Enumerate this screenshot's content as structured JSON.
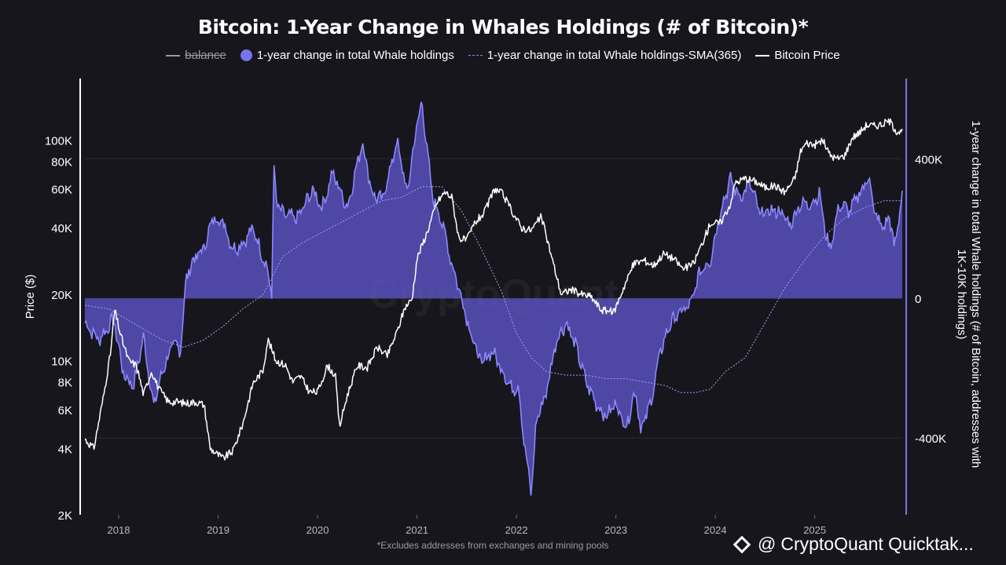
{
  "chart_data": {
    "type": "area",
    "title": "Bitcoin: 1-Year Change in Whales Holdings (# of Bitcoin)*",
    "footnote": "*Excludes addresses from exchanges and mining pools",
    "watermark": "CryptoQuant",
    "legend": [
      {
        "label": "balance",
        "style": "line",
        "color": "#9b9aa3",
        "hidden": true
      },
      {
        "label": "1-year change in total Whale holdings",
        "style": "area",
        "color": "#7a72f0"
      },
      {
        "label": "1-year change in total Whale holdings-SMA(365)",
        "style": "dashed",
        "color": "#8a84f2"
      },
      {
        "label": "Bitcoin Price",
        "style": "line",
        "color": "#ffffff"
      }
    ],
    "x_ticks": [
      "2018",
      "2019",
      "2020",
      "2021",
      "2022",
      "2023",
      "2024",
      "2025"
    ],
    "x_range": [
      2017.66,
      2025.88
    ],
    "left_axis": {
      "label": "Price ($)",
      "scale": "log",
      "range": [
        2000,
        190000
      ],
      "ticks": [
        {
          "value": 2000,
          "label": "2K"
        },
        {
          "value": 4000,
          "label": "4K"
        },
        {
          "value": 6000,
          "label": "6K"
        },
        {
          "value": 8000,
          "label": "8K"
        },
        {
          "value": 10000,
          "label": "10K"
        },
        {
          "value": 20000,
          "label": "20K"
        },
        {
          "value": 40000,
          "label": "40K"
        },
        {
          "value": 60000,
          "label": "60K"
        },
        {
          "value": 80000,
          "label": "80K"
        },
        {
          "value": 100000,
          "label": "100K"
        }
      ]
    },
    "right_axis": {
      "label": "1-year change in total Whale holdings (# of Bitcoin, addresses with 1K-10K holdings)",
      "range": [
        -620000,
        630000
      ],
      "ticks": [
        {
          "value": 400000,
          "label": "400K"
        },
        {
          "value": 0,
          "label": "0"
        },
        {
          "value": -400000,
          "label": "-400K"
        }
      ]
    },
    "whale_change": {
      "x": [
        2017.66,
        2017.8,
        2017.95,
        2018.05,
        2018.15,
        2018.25,
        2018.35,
        2018.45,
        2018.55,
        2018.62,
        2018.68,
        2018.75,
        2018.85,
        2018.95,
        2019.05,
        2019.15,
        2019.25,
        2019.35,
        2019.45,
        2019.5,
        2019.54,
        2019.56,
        2019.58,
        2019.65,
        2019.8,
        2019.95,
        2020.05,
        2020.15,
        2020.3,
        2020.45,
        2020.55,
        2020.65,
        2020.8,
        2020.9,
        2021.0,
        2021.05,
        2021.12,
        2021.15,
        2021.25,
        2021.35,
        2021.45,
        2021.55,
        2021.65,
        2021.75,
        2021.85,
        2021.95,
        2022.02,
        2022.08,
        2022.15,
        2022.2,
        2022.3,
        2022.4,
        2022.5,
        2022.6,
        2022.7,
        2022.8,
        2022.9,
        2023.0,
        2023.1,
        2023.2,
        2023.25,
        2023.35,
        2023.45,
        2023.55,
        2023.65,
        2023.75,
        2023.85,
        2023.95,
        2024.05,
        2024.15,
        2024.25,
        2024.35,
        2024.45,
        2024.55,
        2024.65,
        2024.75,
        2024.85,
        2024.95,
        2025.05,
        2025.1,
        2025.15,
        2025.25,
        2025.35,
        2025.45,
        2025.55,
        2025.6,
        2025.7,
        2025.75,
        2025.8,
        2025.88
      ],
      "y": [
        -70000,
        -120000,
        -60000,
        -220000,
        -250000,
        -110000,
        -310000,
        -200000,
        -130000,
        -150000,
        60000,
        110000,
        140000,
        230000,
        220000,
        140000,
        160000,
        200000,
        120000,
        80000,
        0,
        400000,
        280000,
        240000,
        230000,
        310000,
        260000,
        360000,
        260000,
        450000,
        300000,
        280000,
        450000,
        300000,
        500000,
        560000,
        380000,
        300000,
        220000,
        100000,
        0,
        -110000,
        -190000,
        -150000,
        -200000,
        -260000,
        -250000,
        -420000,
        -560000,
        -350000,
        -270000,
        -120000,
        -70000,
        -140000,
        -240000,
        -300000,
        -340000,
        -300000,
        -370000,
        -260000,
        -380000,
        -300000,
        -150000,
        -70000,
        -40000,
        -20000,
        80000,
        110000,
        250000,
        340000,
        290000,
        330000,
        240000,
        250000,
        250000,
        210000,
        270000,
        270000,
        300000,
        200000,
        140000,
        270000,
        250000,
        300000,
        350000,
        240000,
        200000,
        240000,
        140000,
        300000
      ]
    },
    "whale_sma": {
      "x": [
        2017.66,
        2017.9,
        2018.2,
        2018.45,
        2018.65,
        2018.85,
        2019.05,
        2019.25,
        2019.45,
        2019.65,
        2019.85,
        2020.05,
        2020.25,
        2020.45,
        2020.65,
        2020.85,
        2021.05,
        2021.25,
        2021.45,
        2021.65,
        2021.85,
        2022.0,
        2022.15,
        2022.3,
        2022.5,
        2022.7,
        2022.9,
        2023.1,
        2023.3,
        2023.5,
        2023.65,
        2023.8,
        2023.95,
        2024.1,
        2024.3,
        2024.5,
        2024.7,
        2024.9,
        2025.1,
        2025.3,
        2025.5,
        2025.7,
        2025.88
      ],
      "y": [
        -20000,
        -30000,
        -80000,
        -120000,
        -140000,
        -120000,
        -80000,
        -30000,
        10000,
        120000,
        160000,
        190000,
        220000,
        250000,
        280000,
        290000,
        320000,
        320000,
        250000,
        140000,
        20000,
        -100000,
        -170000,
        -210000,
        -220000,
        -220000,
        -230000,
        -230000,
        -240000,
        -250000,
        -270000,
        -270000,
        -260000,
        -210000,
        -170000,
        -70000,
        30000,
        110000,
        180000,
        230000,
        260000,
        280000,
        280000
      ]
    },
    "btc_price": {
      "x": [
        2017.66,
        2017.75,
        2017.85,
        2017.92,
        2017.96,
        2018.02,
        2018.1,
        2018.18,
        2018.25,
        2018.33,
        2018.4,
        2018.5,
        2018.58,
        2018.68,
        2018.78,
        2018.86,
        2018.92,
        2018.98,
        2019.05,
        2019.15,
        2019.25,
        2019.35,
        2019.45,
        2019.5,
        2019.58,
        2019.68,
        2019.75,
        2019.83,
        2019.92,
        2020.0,
        2020.1,
        2020.18,
        2020.22,
        2020.3,
        2020.4,
        2020.5,
        2020.6,
        2020.7,
        2020.8,
        2020.88,
        2020.95,
        2021.0,
        2021.1,
        2021.2,
        2021.28,
        2021.35,
        2021.42,
        2021.5,
        2021.58,
        2021.68,
        2021.78,
        2021.86,
        2021.95,
        2022.05,
        2022.15,
        2022.25,
        2022.35,
        2022.45,
        2022.55,
        2022.65,
        2022.75,
        2022.85,
        2022.92,
        2022.98,
        2023.08,
        2023.18,
        2023.28,
        2023.38,
        2023.48,
        2023.58,
        2023.68,
        2023.78,
        2023.88,
        2023.95,
        2024.05,
        2024.15,
        2024.2,
        2024.3,
        2024.4,
        2024.5,
        2024.6,
        2024.7,
        2024.8,
        2024.86,
        2024.92,
        2025.0,
        2025.08,
        2025.15,
        2025.22,
        2025.3,
        2025.38,
        2025.45,
        2025.52,
        2025.6,
        2025.68,
        2025.75,
        2025.82,
        2025.88
      ],
      "y": [
        4400,
        4000,
        7000,
        11000,
        17000,
        13000,
        10000,
        9500,
        7000,
        9000,
        7500,
        6500,
        6500,
        6400,
        6500,
        6300,
        4000,
        3800,
        3600,
        3900,
        5200,
        7900,
        9000,
        12500,
        10000,
        9500,
        8000,
        8500,
        7200,
        7200,
        9500,
        8500,
        5000,
        7000,
        9500,
        9300,
        11500,
        10500,
        13500,
        17500,
        19000,
        29000,
        38000,
        52000,
        58000,
        55000,
        36000,
        35000,
        42000,
        47000,
        60000,
        57000,
        48000,
        40000,
        39000,
        45000,
        30000,
        20000,
        21000,
        20000,
        19500,
        17000,
        16800,
        16600,
        21500,
        27500,
        28500,
        27000,
        30500,
        29000,
        26000,
        27500,
        35000,
        42000,
        42000,
        51000,
        64000,
        67000,
        65000,
        61000,
        62000,
        58000,
        67000,
        90000,
        97000,
        95000,
        100000,
        86000,
        82000,
        85000,
        103000,
        108000,
        117000,
        116000,
        118000,
        122000,
        110000,
        108000
      ]
    }
  }
}
